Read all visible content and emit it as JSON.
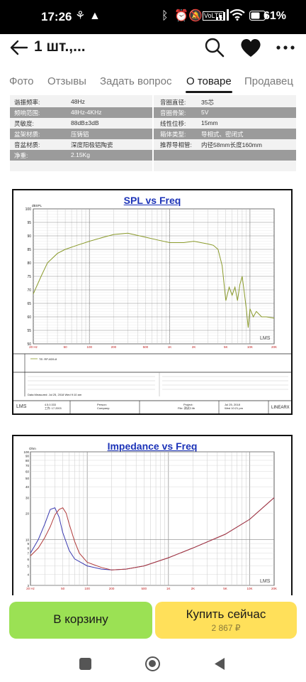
{
  "status_bar": {
    "time": "17:26",
    "battery_percent": "61%"
  },
  "app_bar": {
    "title": "1 шт.,..."
  },
  "tabs": [
    {
      "label": "Фото"
    },
    {
      "label": "Отзывы"
    },
    {
      "label": "Задать вопрос"
    },
    {
      "label": "О товаре",
      "active": true
    },
    {
      "label": "Продавец"
    }
  ],
  "specs": {
    "left": [
      {
        "k": "谐振频率:",
        "v": "48Hz"
      },
      {
        "k": "频响范围:",
        "v": "48Hz-4KHz"
      },
      {
        "k": "灵敏度:",
        "v": "88dB±3dB"
      },
      {
        "k": "盆架材质:",
        "v": "压铸铝"
      },
      {
        "k": "音盆材质:",
        "v": "深度阳极铝陶瓷"
      },
      {
        "k": "净重:",
        "v": "2.15Kg"
      }
    ],
    "right": [
      {
        "k": "音圈直径:",
        "v": "35芯"
      },
      {
        "k": "音圈骨架:",
        "v": "5V"
      },
      {
        "k": "线性位移:",
        "v": "15mm"
      },
      {
        "k": "箱体类型:",
        "v": "导相式、密闭式"
      },
      {
        "k": "推荐导相管:",
        "v": "内径58mm长度160mm"
      }
    ]
  },
  "chart_data": [
    {
      "type": "line",
      "title": "SPL vs Freq",
      "ylabel": "dBSPL",
      "y_ticks": [
        "100",
        "95",
        "90",
        "85",
        "80",
        "75",
        "70",
        "65",
        "60",
        "55",
        "50"
      ],
      "x_ticks": [
        "20 Hz",
        "50",
        "100",
        "200",
        "500",
        "1K",
        "2K",
        "5K",
        "10K",
        "20K"
      ],
      "x_scale": "log",
      "xlim": [
        20,
        20000
      ],
      "ylim": [
        50,
        100
      ],
      "series": [
        {
          "color": "#8a9a2a",
          "x": [
            20,
            25,
            30,
            40,
            50,
            70,
            100,
            150,
            200,
            300,
            500,
            700,
            1000,
            1500,
            2000,
            3000,
            3500,
            4000,
            4500,
            5000,
            5500,
            6000,
            6500,
            7000,
            7500,
            8000,
            8500,
            9000,
            9500,
            10000,
            11000,
            12000,
            14000,
            16000,
            20000
          ],
          "y": [
            68.5,
            75,
            80,
            83.5,
            85,
            86.5,
            88,
            89.5,
            90.5,
            91,
            89.5,
            88.5,
            87.5,
            87.5,
            88,
            87,
            86.5,
            85,
            79,
            66,
            71,
            68,
            71,
            66,
            72,
            75,
            69,
            63,
            56,
            63,
            60,
            62,
            60,
            60,
            59.5
          ]
        }
      ],
      "legend_text": "TE: RP-6D5-8",
      "footer": {
        "left": [
          "4.5.0.333",
          "工作: 17-2003"
        ],
        "person": "Person:",
        "company": "Company:",
        "project": "Project:",
        "file": "File: 测试2.lib",
        "date": "Jul 25, 2018",
        "time": "Wed 10:21 pm",
        "date_measured": "Data Measured: Jul 25, 2018 Wed 9:10 am",
        "brand": "LINEARX",
        "watermark": "LMS"
      }
    },
    {
      "type": "line",
      "title": "Impedance vs Freq",
      "ylabel": "Ohm",
      "y_ticks": [
        "100",
        "90",
        "80",
        "70",
        "60",
        "50",
        "40",
        "30",
        "20",
        "10",
        "9",
        "8",
        "7",
        "6",
        "5",
        "4",
        "3"
      ],
      "x_ticks": [
        "20 Hz",
        "50",
        "100",
        "200",
        "500",
        "1K",
        "2K",
        "5K",
        "10K",
        "20K"
      ],
      "x_scale": "log",
      "xlim": [
        20,
        20000
      ],
      "ylim": [
        3,
        100
      ],
      "series": [
        {
          "color": "#3a3ab0",
          "x": [
            20,
            25,
            30,
            35,
            40,
            45,
            50,
            60,
            70,
            100,
            150,
            200,
            300,
            500,
            1000,
            2000,
            5000,
            10000,
            20000
          ],
          "y": [
            7,
            10,
            15,
            22,
            23,
            18,
            12,
            7.5,
            6,
            5,
            4.6,
            4.5,
            4.6,
            5,
            6.2,
            8,
            11.5,
            17,
            30
          ]
        },
        {
          "color": "#b03a3a",
          "x": [
            20,
            25,
            30,
            35,
            40,
            45,
            50,
            55,
            60,
            70,
            80,
            100,
            150,
            200,
            300,
            500,
            1000,
            2000,
            5000,
            10000,
            20000
          ],
          "y": [
            6.5,
            8,
            10.5,
            14,
            19,
            22,
            23,
            20,
            15,
            9.5,
            7,
            5.5,
            4.8,
            4.5,
            4.6,
            5,
            6.2,
            8,
            11.5,
            17,
            30
          ]
        }
      ],
      "watermark": "LMS"
    }
  ],
  "actions": {
    "cart_label": "В корзину",
    "buy_label": "Купить сейчас",
    "price": "2 867 ₽"
  }
}
